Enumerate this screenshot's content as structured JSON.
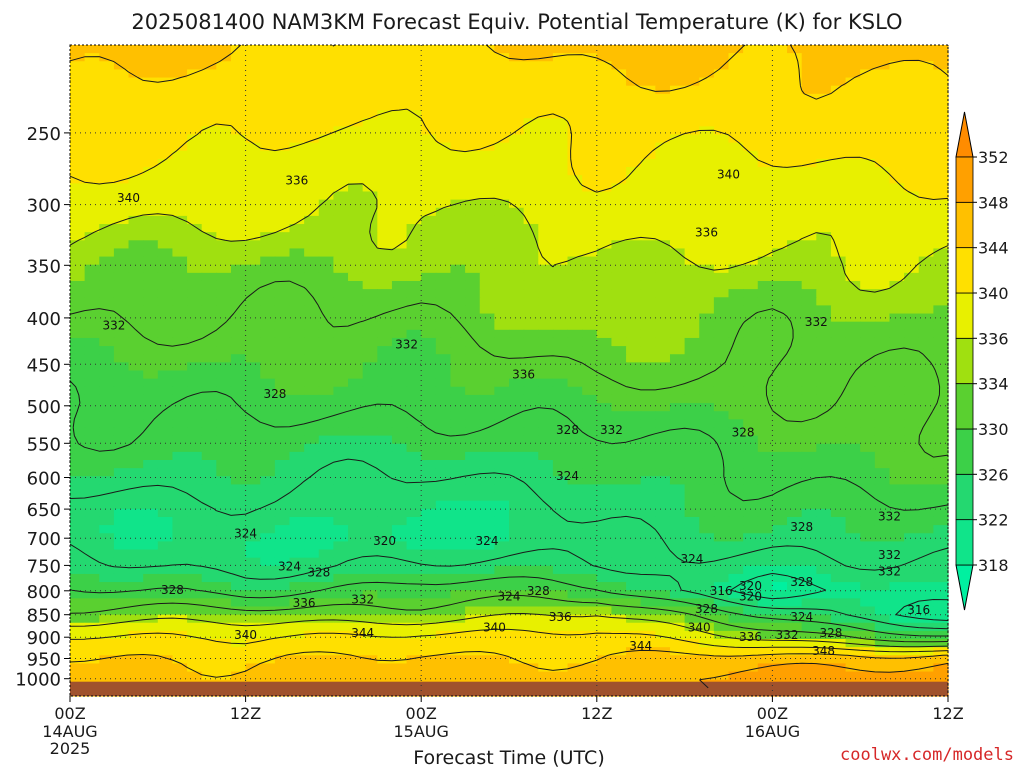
{
  "title": "2025081400 NAM3KM Forecast Equiv. Potential Temperature (K) for KSLO",
  "credit": "coolwx.com/models",
  "colors": {
    "terrain": "#a0522d",
    "contour": "#1a1a1a",
    "credit": "#d62728",
    "grid": "#333333"
  },
  "chart_data": {
    "type": "heatmap",
    "title": "2025081400 NAM3KM Forecast Equiv. Potential Temperature (K) for KSLO",
    "xlabel": "Forecast Time (UTC)",
    "ylabel": "",
    "x_range_hours": [
      0,
      60
    ],
    "y_range_hpa": [
      1000,
      200
    ],
    "y_scale": "log-pressure",
    "grid": true,
    "x_ticks": [
      {
        "hour": 0,
        "label": "00Z",
        "sub1": "14AUG",
        "sub2": "2025"
      },
      {
        "hour": 12,
        "label": "12Z",
        "sub1": "",
        "sub2": ""
      },
      {
        "hour": 24,
        "label": "00Z",
        "sub1": "15AUG",
        "sub2": ""
      },
      {
        "hour": 36,
        "label": "12Z",
        "sub1": "",
        "sub2": ""
      },
      {
        "hour": 48,
        "label": "00Z",
        "sub1": "16AUG",
        "sub2": ""
      },
      {
        "hour": 60,
        "label": "12Z",
        "sub1": "",
        "sub2": ""
      }
    ],
    "y_ticks": [
      250,
      300,
      350,
      400,
      450,
      500,
      550,
      600,
      650,
      700,
      750,
      800,
      850,
      900,
      950,
      1000
    ],
    "colorbar": {
      "levels": [
        318,
        322,
        326,
        330,
        334,
        336,
        340,
        344,
        348,
        352
      ],
      "colors": [
        "#00f0a0",
        "#10e48a",
        "#24d870",
        "#3cd048",
        "#5ad030",
        "#a0e010",
        "#e8f000",
        "#ffe000",
        "#ffc000",
        "#ffa000",
        "#ff8c00"
      ]
    },
    "profiles": [
      {
        "hour": 0,
        "p_hpa": [
          1000,
          950,
          900,
          850,
          800,
          750,
          700,
          650,
          600,
          550,
          500,
          450,
          400,
          350,
          300,
          250,
          200
        ],
        "theta_e": [
          347,
          345,
          341,
          333,
          328,
          325,
          323,
          323,
          325,
          327,
          328,
          330,
          332,
          334,
          338,
          342,
          346
        ]
      },
      {
        "hour": 12,
        "p_hpa": [
          1000,
          950,
          900,
          850,
          800,
          750,
          700,
          650,
          600,
          550,
          500,
          450,
          400,
          350,
          300,
          250,
          200
        ],
        "theta_e": [
          345,
          343,
          339,
          334,
          327,
          323,
          322,
          323,
          325,
          327,
          329,
          330,
          332,
          334,
          337,
          341,
          344
        ]
      },
      {
        "hour": 24,
        "p_hpa": [
          1000,
          950,
          900,
          850,
          800,
          750,
          700,
          650,
          600,
          550,
          500,
          450,
          400,
          350,
          300,
          250,
          200
        ],
        "theta_e": [
          347,
          345,
          342,
          334,
          330,
          324,
          320,
          322,
          324,
          326,
          328,
          330,
          332,
          334,
          336,
          339,
          343
        ]
      },
      {
        "hour": 36,
        "p_hpa": [
          1000,
          950,
          900,
          850,
          800,
          750,
          700,
          650,
          600,
          550,
          500,
          450,
          400,
          350,
          300,
          250,
          200
        ],
        "theta_e": [
          346,
          344,
          341,
          336,
          329,
          325,
          324,
          324,
          325,
          327,
          330,
          333,
          335,
          336,
          338,
          341,
          345
        ]
      },
      {
        "hour": 48,
        "p_hpa": [
          1000,
          950,
          900,
          850,
          800,
          750,
          700,
          650,
          600,
          550,
          500,
          450,
          400,
          350,
          300,
          250,
          200
        ],
        "theta_e": [
          350,
          346,
          335,
          328,
          318,
          322,
          325,
          327,
          329,
          330,
          331,
          332,
          333,
          335,
          338,
          341,
          345
        ]
      },
      {
        "hour": 60,
        "p_hpa": [
          1000,
          950,
          900,
          850,
          800,
          750,
          700,
          650,
          600,
          550,
          500,
          450,
          400,
          350,
          300,
          250,
          200
        ],
        "theta_e": [
          351,
          347,
          328,
          317,
          322,
          324,
          326,
          328,
          330,
          331,
          332,
          333,
          334,
          336,
          339,
          342,
          346
        ]
      }
    ],
    "contour_labels": [
      {
        "value": "336",
        "hour": 15.5,
        "p_hpa": 282
      },
      {
        "value": "340",
        "hour": 4.0,
        "p_hpa": 295
      },
      {
        "value": "340",
        "hour": 45.0,
        "p_hpa": 278
      },
      {
        "value": "336",
        "hour": 43.5,
        "p_hpa": 322
      },
      {
        "value": "332",
        "hour": 3.0,
        "p_hpa": 408
      },
      {
        "value": "332",
        "hour": 23.0,
        "p_hpa": 428
      },
      {
        "value": "332",
        "hour": 51.0,
        "p_hpa": 404
      },
      {
        "value": "336",
        "hour": 31.0,
        "p_hpa": 462
      },
      {
        "value": "328",
        "hour": 14.0,
        "p_hpa": 485
      },
      {
        "value": "328",
        "hour": 34.0,
        "p_hpa": 532
      },
      {
        "value": "332",
        "hour": 37.0,
        "p_hpa": 532
      },
      {
        "value": "328",
        "hour": 46.0,
        "p_hpa": 535
      },
      {
        "value": "324",
        "hour": 34.0,
        "p_hpa": 598
      },
      {
        "value": "332",
        "hour": 56.0,
        "p_hpa": 662
      },
      {
        "value": "324",
        "hour": 12.0,
        "p_hpa": 692
      },
      {
        "value": "320",
        "hour": 21.5,
        "p_hpa": 705
      },
      {
        "value": "324",
        "hour": 28.5,
        "p_hpa": 705
      },
      {
        "value": "328",
        "hour": 50.0,
        "p_hpa": 680
      },
      {
        "value": "332",
        "hour": 56.0,
        "p_hpa": 730
      },
      {
        "value": "324",
        "hour": 42.5,
        "p_hpa": 738
      },
      {
        "value": "324",
        "hour": 15.0,
        "p_hpa": 752
      },
      {
        "value": "328",
        "hour": 17.0,
        "p_hpa": 764
      },
      {
        "value": "332",
        "hour": 56.0,
        "p_hpa": 762
      },
      {
        "value": "320",
        "hour": 46.5,
        "p_hpa": 790
      },
      {
        "value": "328",
        "hour": 50.0,
        "p_hpa": 782
      },
      {
        "value": "328",
        "hour": 7.0,
        "p_hpa": 798
      },
      {
        "value": "316",
        "hour": 44.5,
        "p_hpa": 800
      },
      {
        "value": "320",
        "hour": 46.5,
        "p_hpa": 812
      },
      {
        "value": "324",
        "hour": 30.0,
        "p_hpa": 812
      },
      {
        "value": "328",
        "hour": 32.0,
        "p_hpa": 800
      },
      {
        "value": "336",
        "hour": 16.0,
        "p_hpa": 825
      },
      {
        "value": "332",
        "hour": 20.0,
        "p_hpa": 818
      },
      {
        "value": "336",
        "hour": 33.5,
        "p_hpa": 855
      },
      {
        "value": "328",
        "hour": 43.5,
        "p_hpa": 838
      },
      {
        "value": "324",
        "hour": 50.0,
        "p_hpa": 855
      },
      {
        "value": "316",
        "hour": 58.0,
        "p_hpa": 840
      },
      {
        "value": "340",
        "hour": 29.0,
        "p_hpa": 878
      },
      {
        "value": "340",
        "hour": 43.0,
        "p_hpa": 878
      },
      {
        "value": "344",
        "hour": 20.0,
        "p_hpa": 890
      },
      {
        "value": "340",
        "hour": 12.0,
        "p_hpa": 895
      },
      {
        "value": "344",
        "hour": 39.0,
        "p_hpa": 920
      },
      {
        "value": "336",
        "hour": 46.5,
        "p_hpa": 900
      },
      {
        "value": "332",
        "hour": 49.0,
        "p_hpa": 895
      },
      {
        "value": "328",
        "hour": 52.0,
        "p_hpa": 890
      },
      {
        "value": "348",
        "hour": 51.5,
        "p_hpa": 932
      }
    ]
  }
}
